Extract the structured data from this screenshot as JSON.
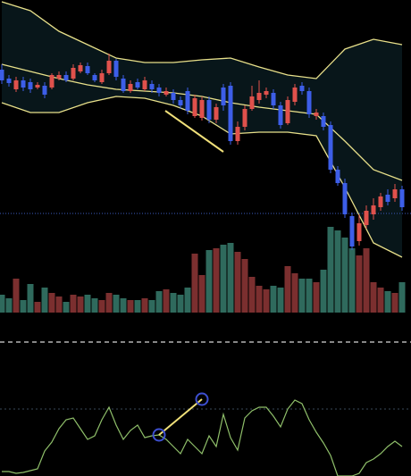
{
  "chart_data": [
    {
      "type": "candlestick",
      "ylim": [
        0,
        350
      ],
      "up_color": "#e0514c",
      "down_color": "#3d5ee8",
      "open": [
        272,
        262,
        250,
        260,
        258,
        252,
        254,
        252,
        262,
        266,
        262,
        270,
        276,
        266,
        258,
        268,
        282,
        262,
        248,
        258,
        250,
        256,
        252,
        244,
        246,
        238,
        248,
        220,
        218,
        238,
        216,
        252,
        254,
        192,
        208,
        228,
        238,
        244,
        246,
        232,
        212,
        236,
        254,
        248,
        220,
        220,
        210,
        160,
        145,
        108,
        80,
        98,
        110,
        118,
        132,
        128,
        138
      ],
      "high": [
        278,
        266,
        264,
        264,
        262,
        258,
        258,
        268,
        270,
        270,
        278,
        280,
        280,
        268,
        272,
        290,
        284,
        266,
        260,
        262,
        264,
        260,
        256,
        252,
        250,
        242,
        252,
        244,
        242,
        242,
        234,
        256,
        258,
        214,
        232,
        254,
        260,
        252,
        250,
        236,
        242,
        256,
        258,
        252,
        228,
        224,
        214,
        164,
        150,
        112,
        110,
        120,
        128,
        134,
        138,
        144,
        142
      ],
      "low": [
        256,
        253,
        247,
        248,
        246,
        250,
        240,
        250,
        260,
        258,
        260,
        268,
        266,
        258,
        256,
        266,
        260,
        246,
        246,
        250,
        248,
        246,
        242,
        242,
        234,
        228,
        222,
        218,
        215,
        212,
        212,
        226,
        188,
        188,
        204,
        226,
        234,
        240,
        228,
        206,
        210,
        232,
        244,
        218,
        216,
        204,
        156,
        142,
        106,
        70,
        75,
        94,
        104,
        114,
        120,
        124,
        114
      ],
      "close": [
        260,
        257,
        260,
        252,
        250,
        255,
        244,
        266,
        266,
        260,
        274,
        277,
        268,
        260,
        268,
        282,
        264,
        248,
        256,
        252,
        260,
        250,
        246,
        248,
        238,
        232,
        226,
        240,
        238,
        216,
        230,
        232,
        192,
        208,
        228,
        242,
        246,
        248,
        232,
        210,
        238,
        252,
        248,
        222,
        224,
        208,
        160,
        145,
        110,
        74,
        100,
        114,
        120,
        130,
        124,
        138,
        118
      ],
      "bands": {
        "fill": "#08161a",
        "x": [
          0,
          4,
          8,
          12,
          16,
          20,
          24,
          28,
          32,
          36,
          40,
          44,
          48,
          52,
          56
        ],
        "series": [
          {
            "color": "#e8e08a",
            "values": [
              348,
              338,
              315,
              300,
              285,
              280,
              280,
              283,
              285,
              275,
              266,
              262,
              295,
              306,
              300
            ]
          },
          {
            "color": "#e8e08a",
            "values": [
              278,
              270,
              262,
              255,
              250,
              248,
              246,
              242,
              235,
              230,
              226,
              222,
              192,
              160,
              148
            ]
          },
          {
            "color": "#e8e08a",
            "values": [
              235,
              224,
              224,
              235,
              242,
              240,
              232,
              220,
              200,
              202,
              202,
              198,
              140,
              78,
              62
            ]
          }
        ]
      },
      "reference_line": {
        "value": 111,
        "color": "#3b5bbf"
      }
    },
    {
      "type": "bar",
      "ylim": [
        0,
        150
      ],
      "up_color": "#7b2f2f",
      "down_color": "#2f6a5d",
      "values": [
        20,
        16,
        38,
        14,
        32,
        12,
        28,
        22,
        18,
        12,
        20,
        18,
        20,
        16,
        14,
        22,
        20,
        16,
        14,
        14,
        16,
        14,
        24,
        26,
        22,
        20,
        28,
        66,
        42,
        70,
        72,
        76,
        78,
        68,
        60,
        40,
        30,
        26,
        30,
        28,
        52,
        44,
        38,
        38,
        34,
        48,
        96,
        92,
        84,
        72,
        64,
        72,
        34,
        28,
        24,
        22,
        34
      ]
    },
    {
      "type": "line",
      "ylim": [
        0,
        150
      ],
      "color": "#8fbf6a",
      "levels": [
        150,
        75
      ],
      "values": [
        5,
        5,
        3,
        4,
        6,
        8,
        28,
        38,
        53,
        63,
        65,
        53,
        41,
        45,
        63,
        77,
        57,
        41,
        51,
        57,
        43,
        45,
        46,
        41,
        33,
        25,
        41,
        33,
        25,
        45,
        33,
        69,
        43,
        29,
        65,
        73,
        77,
        77,
        67,
        55,
        75,
        85,
        81,
        63,
        49,
        37,
        23,
        0,
        0,
        0,
        3,
        15,
        19,
        25,
        33,
        39,
        33
      ]
    }
  ]
}
